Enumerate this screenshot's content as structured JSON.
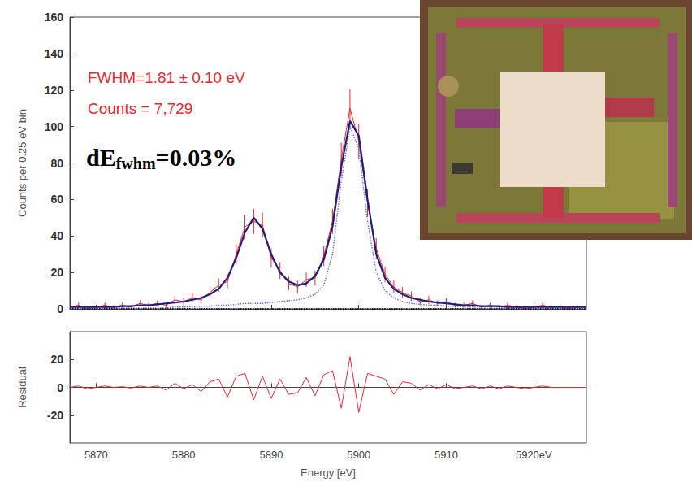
{
  "chart_data": [
    {
      "type": "line",
      "y_label": "Counts per 0.25 eV bin",
      "grid": false,
      "tick_labels": "y",
      "xlim": [
        5867,
        5926
      ],
      "xticks": [
        5870,
        5880,
        5890,
        5900,
        5910,
        5920
      ],
      "ylim": [
        0,
        160
      ],
      "yticks": [
        0,
        20,
        40,
        60,
        80,
        100,
        120,
        140,
        160
      ],
      "x": [
        5867,
        5868,
        5869,
        5870,
        5871,
        5872,
        5873,
        5874,
        5875,
        5876,
        5877,
        5878,
        5879,
        5880,
        5881,
        5882,
        5883,
        5884,
        5885,
        5886,
        5887,
        5888,
        5889,
        5890,
        5891,
        5892,
        5893,
        5894,
        5895,
        5896,
        5897,
        5898,
        5899,
        5900,
        5901,
        5902,
        5903,
        5904,
        5905,
        5906,
        5907,
        5908,
        5909,
        5910,
        5911,
        5912,
        5913,
        5914,
        5915,
        5916,
        5917,
        5918,
        5919,
        5920,
        5921,
        5922,
        5923,
        5924,
        5925,
        5926
      ],
      "series": [
        {
          "type": "line",
          "color": "#e8282e",
          "line_style": "solid",
          "values": [
            1,
            2,
            0,
            1,
            2,
            1,
            2,
            1,
            3,
            2,
            3,
            2,
            5,
            4,
            6,
            5,
            9,
            13,
            15,
            30,
            45,
            48,
            46,
            28,
            21,
            14,
            12,
            16,
            17,
            29,
            48,
            82,
            110,
            92,
            58,
            33,
            19,
            12,
            9,
            7,
            4,
            5,
            3,
            4,
            2,
            2,
            3,
            1,
            2,
            1,
            2,
            1,
            0,
            1,
            2,
            1,
            1,
            0,
            1,
            1
          ],
          "errors": [
            1,
            1.4,
            1,
            1,
            1.4,
            1,
            1.4,
            1,
            1.7,
            1.4,
            1.7,
            1.4,
            2.2,
            2,
            2.4,
            2.2,
            3,
            3.6,
            3.9,
            5.5,
            6.7,
            6.9,
            6.8,
            5.3,
            4.6,
            3.7,
            3.5,
            4,
            4.1,
            5.4,
            6.9,
            9.1,
            10.5,
            9.6,
            7.6,
            5.7,
            4.4,
            3.5,
            3,
            2.6,
            2,
            2.2,
            1.7,
            2,
            1.4,
            1.4,
            1.7,
            1,
            1.4,
            1,
            1.4,
            1,
            1,
            1,
            1.4,
            1,
            1,
            1,
            1,
            1
          ]
        },
        {
          "type": "line",
          "color": "#1f1f7a",
          "line_style": "solid",
          "values": [
            1,
            1,
            1,
            1,
            1,
            1,
            1.5,
            1.5,
            2,
            2,
            2.5,
            3,
            3.5,
            4,
            5,
            6,
            8,
            11,
            17,
            28,
            42,
            50,
            44,
            30,
            20,
            15,
            13,
            14,
            18,
            27,
            45,
            78,
            103,
            95,
            60,
            30,
            17,
            11,
            8,
            6,
            5,
            4,
            3.5,
            3,
            2.5,
            2,
            2,
            1.5,
            1.5,
            1.5,
            1,
            1,
            1,
            1,
            1,
            1,
            1,
            1,
            1,
            1
          ]
        },
        {
          "type": "line",
          "color": "#7070d8",
          "line_style": "dotted",
          "values": [
            0.5,
            0.5,
            0.5,
            0.5,
            0.5,
            0.5,
            0.5,
            0.5,
            0.5,
            0.5,
            0.5,
            0.5,
            1,
            1,
            1,
            1.5,
            1.5,
            2,
            2,
            2.5,
            3,
            3,
            3,
            3.5,
            4,
            4.5,
            5,
            6,
            8,
            13,
            30,
            70,
            100,
            88,
            48,
            20,
            10,
            6,
            4,
            3,
            2.5,
            2,
            2,
            1.5,
            1.5,
            1,
            1,
            1,
            1,
            1,
            0.5,
            0.5,
            0.5,
            0.5,
            0.5,
            0.5,
            0.5,
            0.5,
            0.5,
            0.5
          ]
        },
        {
          "type": "line",
          "color": "#000000",
          "line_style": "dotted",
          "values": [
            0,
            0,
            0,
            0,
            0,
            0,
            0,
            0,
            0,
            0,
            0,
            0,
            0,
            0,
            0,
            0,
            0,
            0,
            0,
            0,
            0,
            0,
            0,
            0,
            0,
            0,
            0,
            0,
            0,
            0,
            0,
            0,
            0,
            0,
            0,
            0,
            0,
            0,
            0,
            0,
            0,
            0,
            0,
            0,
            0,
            0,
            0,
            0,
            0,
            0,
            0,
            0,
            0,
            0,
            0,
            0,
            0,
            0,
            0,
            0
          ]
        }
      ],
      "annotations": [
        {
          "text": "FWHM=1.81 ± 0.10 eV",
          "color": "#e8282e"
        },
        {
          "text": "Counts = 7,729",
          "color": "#e8282e"
        },
        {
          "text": "dE",
          "subscript": "fwhm",
          "suffix": "=0.03%",
          "color": "#000000"
        }
      ]
    },
    {
      "type": "line",
      "y_label": "Residual",
      "x_label": "Energy [eV]",
      "grid": false,
      "xlim": [
        5867,
        5926
      ],
      "xticks": [
        5870,
        5880,
        5890,
        5900,
        5910,
        {
          "value": 5920,
          "label": "5920eV"
        }
      ],
      "ylim": [
        -40,
        40
      ],
      "yticks": [
        -20,
        0,
        20
      ],
      "x": [
        5867,
        5868,
        5869,
        5870,
        5871,
        5872,
        5873,
        5874,
        5875,
        5876,
        5877,
        5878,
        5879,
        5880,
        5881,
        5882,
        5883,
        5884,
        5885,
        5886,
        5887,
        5888,
        5889,
        5890,
        5891,
        5892,
        5893,
        5894,
        5895,
        5896,
        5897,
        5898,
        5899,
        5900,
        5901,
        5902,
        5903,
        5904,
        5905,
        5906,
        5907,
        5908,
        5909,
        5910,
        5911,
        5912,
        5913,
        5914,
        5915,
        5916,
        5917,
        5918,
        5919,
        5920,
        5921,
        5922,
        5923,
        5924,
        5925,
        5926
      ],
      "series": [
        {
          "type": "line",
          "color": "#e8282e",
          "line_style": "solid",
          "values": [
            0,
            1,
            -1,
            0,
            1,
            0,
            0.5,
            -0.5,
            1,
            0,
            1,
            -2,
            3,
            -1,
            2,
            -3,
            4,
            6,
            -7,
            8,
            10,
            -9,
            8,
            -8,
            6,
            -5,
            -4,
            7,
            -6,
            9,
            12,
            -15,
            22,
            -18,
            10,
            8,
            6,
            -5,
            4,
            3,
            -2,
            2,
            -1,
            2,
            -1,
            0,
            1,
            -1,
            1,
            -1,
            1,
            0,
            -1,
            0,
            1,
            0,
            0,
            0,
            0,
            0
          ]
        }
      ]
    }
  ]
}
